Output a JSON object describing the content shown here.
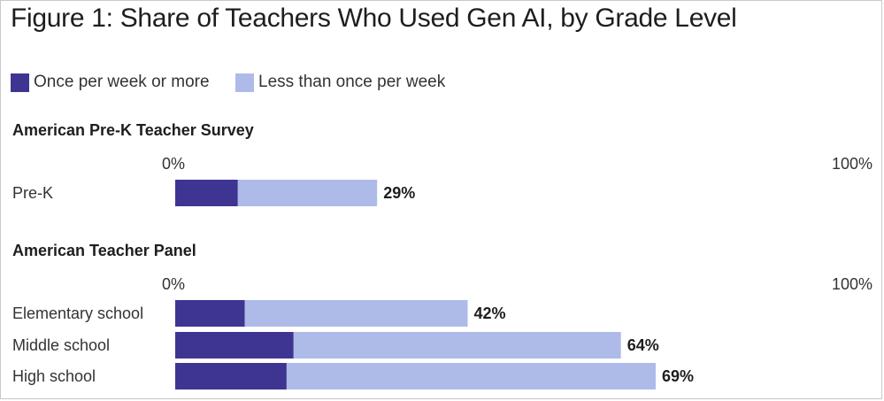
{
  "title": "Figure 1: Share of Teachers Who Used Gen AI, by Grade Level",
  "colors": {
    "weekly": "#3e3592",
    "less": "#aebbe9",
    "text": "#1e1e1e"
  },
  "legend": [
    {
      "label": "Once per week or more",
      "color": "#3e3592"
    },
    {
      "label": "Less than once per week",
      "color": "#aebbe9"
    }
  ],
  "chart_data": [
    {
      "type": "bar",
      "orientation": "horizontal",
      "stacked": true,
      "title": "American Pre-K Teacher Survey",
      "xlim": [
        0,
        100
      ],
      "tick_labels": [
        "0%",
        "100%"
      ],
      "categories": [
        "Pre-K"
      ],
      "series": [
        {
          "name": "Once per week or more",
          "values": [
            9
          ]
        },
        {
          "name": "Less than once per week",
          "values": [
            20
          ]
        }
      ],
      "totals": [
        "29%"
      ]
    },
    {
      "type": "bar",
      "orientation": "horizontal",
      "stacked": true,
      "title": "American Teacher Panel",
      "xlim": [
        0,
        100
      ],
      "tick_labels": [
        "0%",
        "100%"
      ],
      "categories": [
        "Elementary school",
        "Middle school",
        "High school"
      ],
      "series": [
        {
          "name": "Once per week or more",
          "values": [
            10,
            17,
            16
          ]
        },
        {
          "name": "Less than once per week",
          "values": [
            32,
            47,
            53
          ]
        }
      ],
      "totals": [
        "42%",
        "64%",
        "69%"
      ]
    }
  ]
}
